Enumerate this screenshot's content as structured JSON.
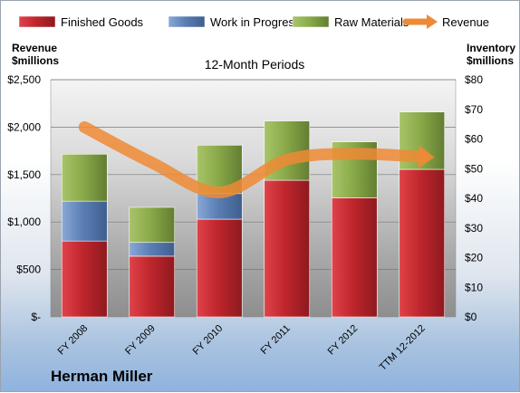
{
  "chart_data": {
    "type": "bar",
    "stacked": true,
    "subtitle": "12-Month Periods",
    "company": "Herman Miller",
    "left_axis_title": [
      "Revenue",
      "$millions"
    ],
    "right_axis_title": [
      "Inventory",
      "$millions"
    ],
    "categories": [
      "FY 2008",
      "FY 2009",
      "FY 2010",
      "FY 2011",
      "FY 2012",
      "TTM 12-2012"
    ],
    "series": [
      {
        "name": "Finished Goods",
        "type": "bar",
        "axis": "left",
        "color": "#c0262d",
        "values": [
          800,
          640,
          1030,
          1440,
          1255,
          1555
        ]
      },
      {
        "name": "Work in Progress",
        "type": "bar",
        "axis": "left",
        "color": "#5b7fb5",
        "values": [
          420,
          145,
          270,
          0,
          0,
          0
        ]
      },
      {
        "name": "Raw Materials",
        "type": "bar",
        "axis": "left",
        "color": "#8aab4a",
        "values": [
          495,
          370,
          510,
          625,
          590,
          605
        ]
      },
      {
        "name": "Revenue",
        "type": "line",
        "axis": "right",
        "color": "#ee8a35",
        "values": [
          64,
          52,
          42,
          53,
          55,
          54
        ]
      }
    ],
    "left_axis": {
      "min": 0,
      "max": 2500,
      "step": 500,
      "tick_labels": [
        "$-",
        "$500",
        "$1,000",
        "$1,500",
        "$2,000",
        "$2,500"
      ]
    },
    "right_axis": {
      "min": 0,
      "max": 80,
      "step": 10,
      "tick_labels": [
        "$0",
        "$10",
        "$20",
        "$30",
        "$40",
        "$50",
        "$60",
        "$70",
        "$80"
      ]
    },
    "grid": true,
    "legend_position": "top"
  }
}
